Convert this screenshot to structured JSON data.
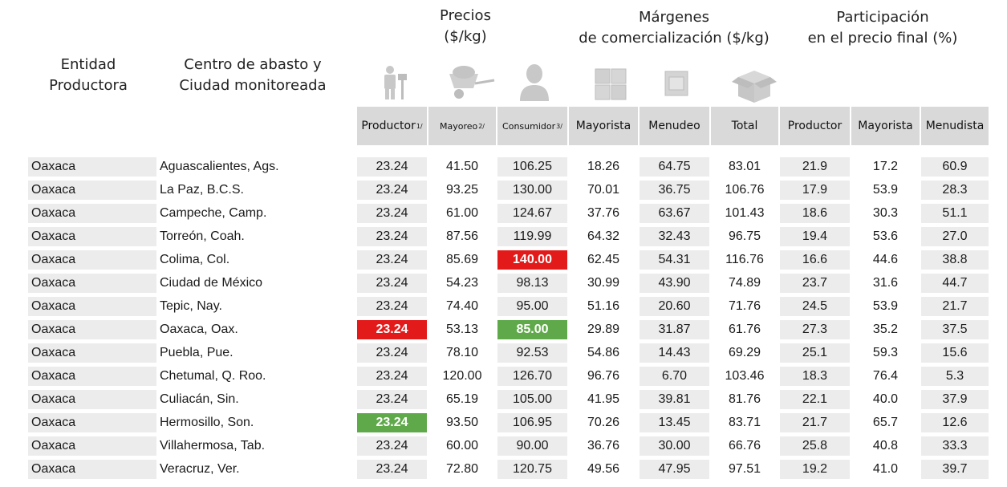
{
  "headers": {
    "entidad": [
      "Entidad",
      "Productora"
    ],
    "centro": [
      "Centro de abasto y",
      "Ciudad monitoreada"
    ],
    "precios": [
      "Precios",
      "($/kg)"
    ],
    "margenes": [
      "Márgenes",
      "de comercialización ($/kg)"
    ],
    "participacion": [
      "Participación",
      "en el precio final (%)"
    ]
  },
  "columns": {
    "productor": {
      "label": "Productor",
      "note": "1/"
    },
    "mayoreo": {
      "label": "Mayoreo",
      "note": "2/"
    },
    "consumidor": {
      "label": "Consumidor",
      "note": "3/"
    },
    "mayorista": "Mayorista",
    "menudeo": "Menudeo",
    "total": "Total",
    "p_productor": "Productor",
    "p_mayorista": "Mayorista",
    "p_menudista": "Menudista"
  },
  "icons": [
    "farmer-icon",
    "wheelbarrow-icon",
    "consumer-icon",
    "warehouse-icon",
    "store-icon",
    "box-icon"
  ],
  "colors": {
    "header_bg": "#d9d9d9",
    "shade": "#ececec",
    "high": "#e31a1a",
    "low": "#5fa94a"
  },
  "rows": [
    {
      "entidad": "Oaxaca",
      "ciudad": "Aguascalientes, Ags.",
      "productor": "23.24",
      "mayoreo": "41.50",
      "consumidor": "106.25",
      "mayorista": "18.26",
      "menudeo": "64.75",
      "total": "83.01",
      "p_productor": "21.9",
      "p_mayorista": "17.2",
      "p_menudista": "60.9"
    },
    {
      "entidad": "Oaxaca",
      "ciudad": "La Paz, B.C.S.",
      "productor": "23.24",
      "mayoreo": "93.25",
      "consumidor": "130.00",
      "mayorista": "70.01",
      "menudeo": "36.75",
      "total": "106.76",
      "p_productor": "17.9",
      "p_mayorista": "53.9",
      "p_menudista": "28.3"
    },
    {
      "entidad": "Oaxaca",
      "ciudad": "Campeche, Camp.",
      "productor": "23.24",
      "mayoreo": "61.00",
      "consumidor": "124.67",
      "mayorista": "37.76",
      "menudeo": "63.67",
      "total": "101.43",
      "p_productor": "18.6",
      "p_mayorista": "30.3",
      "p_menudista": "51.1"
    },
    {
      "entidad": "Oaxaca",
      "ciudad": "Torreón, Coah.",
      "productor": "23.24",
      "mayoreo": "87.56",
      "consumidor": "119.99",
      "mayorista": "64.32",
      "menudeo": "32.43",
      "total": "96.75",
      "p_productor": "19.4",
      "p_mayorista": "53.6",
      "p_menudista": "27.0"
    },
    {
      "entidad": "Oaxaca",
      "ciudad": "Colima, Col.",
      "productor": "23.24",
      "mayoreo": "85.69",
      "consumidor": "140.00",
      "mayorista": "62.45",
      "menudeo": "54.31",
      "total": "116.76",
      "p_productor": "16.6",
      "p_mayorista": "44.6",
      "p_menudista": "38.8",
      "highlight": {
        "consumidor": "red"
      }
    },
    {
      "entidad": "Oaxaca",
      "ciudad": "Ciudad de México",
      "productor": "23.24",
      "mayoreo": "54.23",
      "consumidor": "98.13",
      "mayorista": "30.99",
      "menudeo": "43.90",
      "total": "74.89",
      "p_productor": "23.7",
      "p_mayorista": "31.6",
      "p_menudista": "44.7"
    },
    {
      "entidad": "Oaxaca",
      "ciudad": "Tepic, Nay.",
      "productor": "23.24",
      "mayoreo": "74.40",
      "consumidor": "95.00",
      "mayorista": "51.16",
      "menudeo": "20.60",
      "total": "71.76",
      "p_productor": "24.5",
      "p_mayorista": "53.9",
      "p_menudista": "21.7"
    },
    {
      "entidad": "Oaxaca",
      "ciudad": "Oaxaca, Oax.",
      "productor": "23.24",
      "mayoreo": "53.13",
      "consumidor": "85.00",
      "mayorista": "29.89",
      "menudeo": "31.87",
      "total": "61.76",
      "p_productor": "27.3",
      "p_mayorista": "35.2",
      "p_menudista": "37.5",
      "highlight": {
        "productor": "red",
        "consumidor": "green"
      }
    },
    {
      "entidad": "Oaxaca",
      "ciudad": "Puebla, Pue.",
      "productor": "23.24",
      "mayoreo": "78.10",
      "consumidor": "92.53",
      "mayorista": "54.86",
      "menudeo": "14.43",
      "total": "69.29",
      "p_productor": "25.1",
      "p_mayorista": "59.3",
      "p_menudista": "15.6"
    },
    {
      "entidad": "Oaxaca",
      "ciudad": "Chetumal, Q. Roo.",
      "productor": "23.24",
      "mayoreo": "120.00",
      "consumidor": "126.70",
      "mayorista": "96.76",
      "menudeo": "6.70",
      "total": "103.46",
      "p_productor": "18.3",
      "p_mayorista": "76.4",
      "p_menudista": "5.3"
    },
    {
      "entidad": "Oaxaca",
      "ciudad": "Culiacán, Sin.",
      "productor": "23.24",
      "mayoreo": "65.19",
      "consumidor": "105.00",
      "mayorista": "41.95",
      "menudeo": "39.81",
      "total": "81.76",
      "p_productor": "22.1",
      "p_mayorista": "40.0",
      "p_menudista": "37.9"
    },
    {
      "entidad": "Oaxaca",
      "ciudad": "Hermosillo, Son.",
      "productor": "23.24",
      "mayoreo": "93.50",
      "consumidor": "106.95",
      "mayorista": "70.26",
      "menudeo": "13.45",
      "total": "83.71",
      "p_productor": "21.7",
      "p_mayorista": "65.7",
      "p_menudista": "12.6",
      "highlight": {
        "productor": "green"
      }
    },
    {
      "entidad": "Oaxaca",
      "ciudad": "Villahermosa, Tab.",
      "productor": "23.24",
      "mayoreo": "60.00",
      "consumidor": "90.00",
      "mayorista": "36.76",
      "menudeo": "30.00",
      "total": "66.76",
      "p_productor": "25.8",
      "p_mayorista": "40.8",
      "p_menudista": "33.3"
    },
    {
      "entidad": "Oaxaca",
      "ciudad": "Veracruz, Ver.",
      "productor": "23.24",
      "mayoreo": "72.80",
      "consumidor": "120.75",
      "mayorista": "49.56",
      "menudeo": "47.95",
      "total": "97.51",
      "p_productor": "19.2",
      "p_mayorista": "41.0",
      "p_menudista": "39.7"
    }
  ]
}
